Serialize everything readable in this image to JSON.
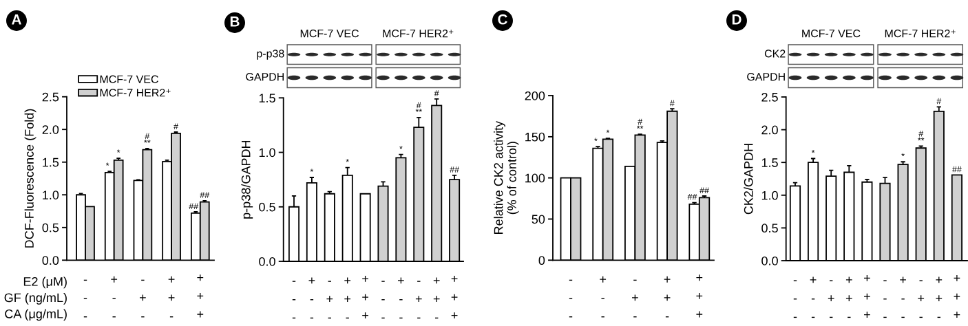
{
  "chart_data": [
    {
      "type": "bar",
      "title": "A",
      "ylabel": "DCF-Fluorescence (Fold)",
      "categories": [
        "-\n-\n-",
        "+\n-\n-",
        "-\n+\n-",
        "+\n+\n-",
        "+\n+\n+"
      ],
      "series": [
        {
          "name": "MCF-7 VEC",
          "color": "#ffffff",
          "values": [
            1.0,
            1.34,
            1.22,
            1.51,
            0.72
          ],
          "errors": [
            [
              1.0,
              1.02
            ],
            [
              1.34,
              1.36
            ],
            [
              1.22,
              1.23
            ],
            [
              1.51,
              1.53
            ],
            [
              0.72,
              0.74
            ]
          ],
          "value_labels": [
            null,
            "*",
            null,
            null,
            "##"
          ]
        },
        {
          "name": "MCF-7 HER2⁺",
          "color": "#d0d0d0",
          "values": [
            0.82,
            1.53,
            1.69,
            1.94,
            0.89
          ],
          "errors": [
            null,
            [
              1.53,
              1.56
            ],
            [
              1.69,
              1.71
            ],
            [
              1.94,
              1.96
            ],
            [
              0.89,
              0.91
            ]
          ],
          "value_labels": [
            null,
            "*",
            "#\n**",
            "#",
            "##"
          ]
        }
      ],
      "ylim": [
        0,
        2.5
      ],
      "yticks": [
        {
          "value": 0,
          "label": "0.0"
        },
        0.5,
        {
          "value": 1,
          "label": "1.0"
        },
        1.5,
        {
          "value": 2,
          "label": "2.0"
        },
        2.5
      ],
      "legend": "top left",
      "annotations": [
        "E2 (μM)",
        "GF (ng/mL)",
        "CA (μg/mL)"
      ]
    },
    {
      "type": "bar",
      "title": "B",
      "ylabel": "p-p38/GAPDH",
      "categories": [
        "-\n-\n-",
        "+\n-\n-",
        "-\n+\n-",
        "+\n+\n-",
        "+\n+\n+",
        "-\n-\n-",
        "+\n-\n-",
        "-\n+\n-",
        "+\n+\n-",
        "+\n+\n+"
      ],
      "values": [
        0.5,
        0.72,
        0.62,
        0.79,
        0.62,
        0.69,
        0.95,
        1.23,
        1.43,
        0.75
      ],
      "colors": [
        "#ffffff",
        "#ffffff",
        "#ffffff",
        "#ffffff",
        "#ffffff",
        "#d0d0d0",
        "#d0d0d0",
        "#d0d0d0",
        "#d0d0d0",
        "#d0d0d0"
      ],
      "errors": [
        [
          0.5,
          0.6
        ],
        [
          0.72,
          0.77
        ],
        [
          0.62,
          0.64
        ],
        [
          0.79,
          0.86
        ],
        null,
        [
          0.69,
          0.73
        ],
        [
          0.95,
          0.98
        ],
        [
          1.23,
          1.32
        ],
        [
          1.43,
          1.49
        ],
        [
          0.75,
          0.79
        ]
      ],
      "value_labels": [
        null,
        "*",
        null,
        "*",
        null,
        null,
        "*",
        "#\n**",
        "#",
        "##"
      ],
      "ylim": [
        0,
        1.5
      ],
      "yticks": [
        {
          "value": 0,
          "label": "0.0"
        },
        0.5,
        {
          "value": 1,
          "label": "1.0"
        },
        1.5
      ],
      "annotations": [
        "MCF-7 VEC",
        "MCF-7 HER2⁺",
        "p-p38",
        "GAPDH"
      ]
    },
    {
      "type": "bar",
      "title": "C",
      "ylabel": "Relative CK2 activity\n(% of control)",
      "categories": [
        "-\n-\n-",
        "+\n-\n-",
        "-\n+\n-",
        "+\n+\n-",
        "+\n+\n+"
      ],
      "series": [
        {
          "color": "#ffffff",
          "values": [
            100,
            136,
            114,
            143,
            68
          ],
          "errors": [
            null,
            [
              136,
              138
            ],
            null,
            [
              143,
              145
            ],
            [
              68,
              70
            ]
          ],
          "value_labels": [
            null,
            "*",
            null,
            null,
            "##"
          ]
        },
        {
          "color": "#d0d0d0",
          "values": [
            100,
            147,
            152,
            181,
            76
          ],
          "errors": [
            null,
            [
              147,
              148
            ],
            [
              152,
              153
            ],
            [
              181,
              184
            ],
            [
              76,
              78
            ]
          ],
          "value_labels": [
            null,
            "*",
            "#\n**",
            "#",
            "##"
          ]
        }
      ],
      "ylim": [
        0,
        200
      ],
      "yticks": [
        0,
        50,
        100,
        150,
        200
      ]
    },
    {
      "type": "bar",
      "title": "D",
      "ylabel": "CK2/GAPDH",
      "categories": [
        "-\n-\n-",
        "+\n-\n-",
        "-\n+\n-",
        "+\n+\n-",
        "+\n+\n+",
        "-\n-\n-",
        "+\n-\n-",
        "-\n+\n-",
        "+\n+\n-",
        "+\n+\n+"
      ],
      "values": [
        1.14,
        1.5,
        1.29,
        1.35,
        1.2,
        1.18,
        1.47,
        1.72,
        2.28,
        1.31
      ],
      "colors": [
        "#ffffff",
        "#ffffff",
        "#ffffff",
        "#ffffff",
        "#ffffff",
        "#d0d0d0",
        "#d0d0d0",
        "#d0d0d0",
        "#d0d0d0",
        "#d0d0d0"
      ],
      "errors": [
        [
          1.14,
          1.19
        ],
        [
          1.5,
          1.56
        ],
        [
          1.29,
          1.38
        ],
        [
          1.35,
          1.45
        ],
        [
          1.2,
          1.24
        ],
        [
          1.18,
          1.27
        ],
        [
          1.47,
          1.51
        ],
        [
          1.72,
          1.75
        ],
        [
          2.28,
          2.35
        ],
        null
      ],
      "value_labels": [
        null,
        "*",
        null,
        null,
        null,
        null,
        "*",
        "#\n**",
        "#",
        "##"
      ],
      "ylim": [
        0,
        2.5
      ],
      "yticks": [
        {
          "value": 0,
          "label": "0.0"
        },
        0.5,
        {
          "value": 1,
          "label": "1.0"
        },
        1.5,
        {
          "value": 2,
          "label": "2.0"
        },
        2.5
      ],
      "annotations": [
        "MCF-7 VEC",
        "MCF-7 HER2⁺",
        "CK2",
        "GAPDH"
      ]
    }
  ]
}
